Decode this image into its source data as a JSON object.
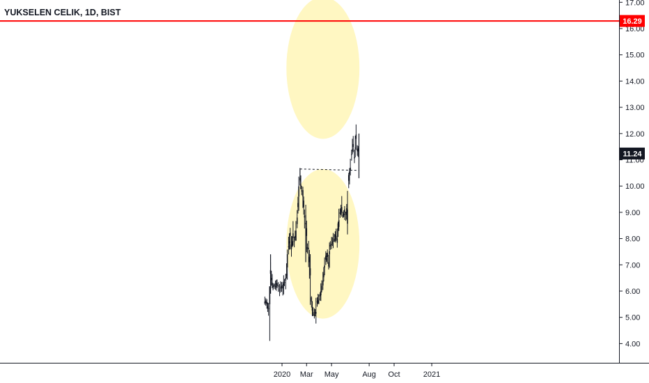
{
  "header": {
    "symbol_title": "YUKSELEN CELIK, 1D, BIST"
  },
  "colors": {
    "background": "#ffffff",
    "axis": "#131722",
    "candle": "#131722",
    "resistance_line": "#ff0000",
    "highlight": "#fff7c2"
  },
  "chart_data": {
    "type": "candlestick",
    "title": "YUKSELEN CELIK, 1D, BIST",
    "y_ticks": [
      "4.00",
      "5.00",
      "6.00",
      "7.00",
      "8.00",
      "9.00",
      "10.00",
      "11.00",
      "12.00",
      "13.00",
      "14.00",
      "15.00",
      "16.00",
      "17.00"
    ],
    "x_ticks": [
      "2020",
      "Mar",
      "May",
      "Aug",
      "Oct",
      "2021"
    ],
    "ylim": [
      3.0,
      17.3
    ],
    "price_series": [
      [
        "2019-11-20",
        5.6
      ],
      [
        "2019-11-25",
        5.5
      ],
      [
        "2019-11-29",
        5.35
      ],
      [
        "2019-12-02",
        5.5
      ],
      [
        "2019-12-04",
        6.8
      ],
      [
        "2019-12-06",
        6.5
      ],
      [
        "2019-12-10",
        6.15
      ],
      [
        "2019-12-16",
        6.2
      ],
      [
        "2019-12-20",
        6.3
      ],
      [
        "2019-12-26",
        6.05
      ],
      [
        "2019-12-31",
        6.2
      ],
      [
        "2020-01-03",
        6.1
      ],
      [
        "2020-01-07",
        6.35
      ],
      [
        "2020-01-10",
        6.4
      ],
      [
        "2020-01-14",
        6.9
      ],
      [
        "2020-01-17",
        7.7
      ],
      [
        "2020-01-21",
        8.1
      ],
      [
        "2020-01-24",
        7.6
      ],
      [
        "2020-01-28",
        8.2
      ],
      [
        "2020-01-31",
        7.9
      ],
      [
        "2020-02-04",
        8.3
      ],
      [
        "2020-02-07",
        8.8
      ],
      [
        "2020-02-11",
        9.6
      ],
      [
        "2020-02-14",
        10.3
      ],
      [
        "2020-02-18",
        9.8
      ],
      [
        "2020-02-21",
        9.6
      ],
      [
        "2020-02-25",
        8.8
      ],
      [
        "2020-02-28",
        8.6
      ],
      [
        "2020-03-03",
        7.6
      ],
      [
        "2020-03-06",
        7.6
      ],
      [
        "2020-03-10",
        6.6
      ],
      [
        "2020-03-13",
        5.6
      ],
      [
        "2020-03-17",
        5.2
      ],
      [
        "2020-03-20",
        5.1
      ],
      [
        "2020-03-24",
        5.2
      ],
      [
        "2020-03-27",
        5.6
      ],
      [
        "2020-03-31",
        5.7
      ],
      [
        "2020-04-03",
        5.8
      ],
      [
        "2020-04-07",
        6.2
      ],
      [
        "2020-04-10",
        6.4
      ],
      [
        "2020-04-14",
        6.9
      ],
      [
        "2020-04-17",
        7.2
      ],
      [
        "2020-04-21",
        7.3
      ],
      [
        "2020-04-24",
        7.1
      ],
      [
        "2020-04-28",
        7.7
      ],
      [
        "2020-05-01",
        7.8
      ],
      [
        "2020-05-05",
        7.9
      ],
      [
        "2020-05-08",
        8.0
      ],
      [
        "2020-05-12",
        8.1
      ],
      [
        "2020-05-15",
        8.0
      ],
      [
        "2020-05-19",
        8.7
      ],
      [
        "2020-05-22",
        9.0
      ],
      [
        "2020-05-26",
        9.2
      ],
      [
        "2020-05-29",
        8.9
      ],
      [
        "2020-06-02",
        9.0
      ],
      [
        "2020-06-05",
        8.9
      ],
      [
        "2020-06-09",
        9.1
      ],
      [
        "2020-06-12",
        10.2
      ],
      [
        "2020-06-16",
        10.7
      ],
      [
        "2020-06-19",
        11.2
      ],
      [
        "2020-06-23",
        11.6
      ],
      [
        "2020-06-26",
        11.1
      ],
      [
        "2020-06-30",
        11.8
      ],
      [
        "2020-07-03",
        11.4
      ],
      [
        "2020-07-07",
        11.24
      ]
    ],
    "resistance": {
      "price": 10.65,
      "from": "2020-02-14",
      "to": "2020-07-08"
    },
    "horizontal_line": {
      "price": 16.29
    },
    "labels": {
      "resistance_price": "16.29",
      "last_price": "11.24"
    },
    "last_price": 11.24,
    "highlight_circles": [
      {
        "center_date": "2020-04-10",
        "center_price": 14.5,
        "radius_days": 38,
        "radius_price": 2.7
      },
      {
        "center_date": "2020-04-10",
        "center_price": 7.8,
        "radius_days": 38,
        "radius_price": 2.85
      }
    ],
    "grid": false
  }
}
